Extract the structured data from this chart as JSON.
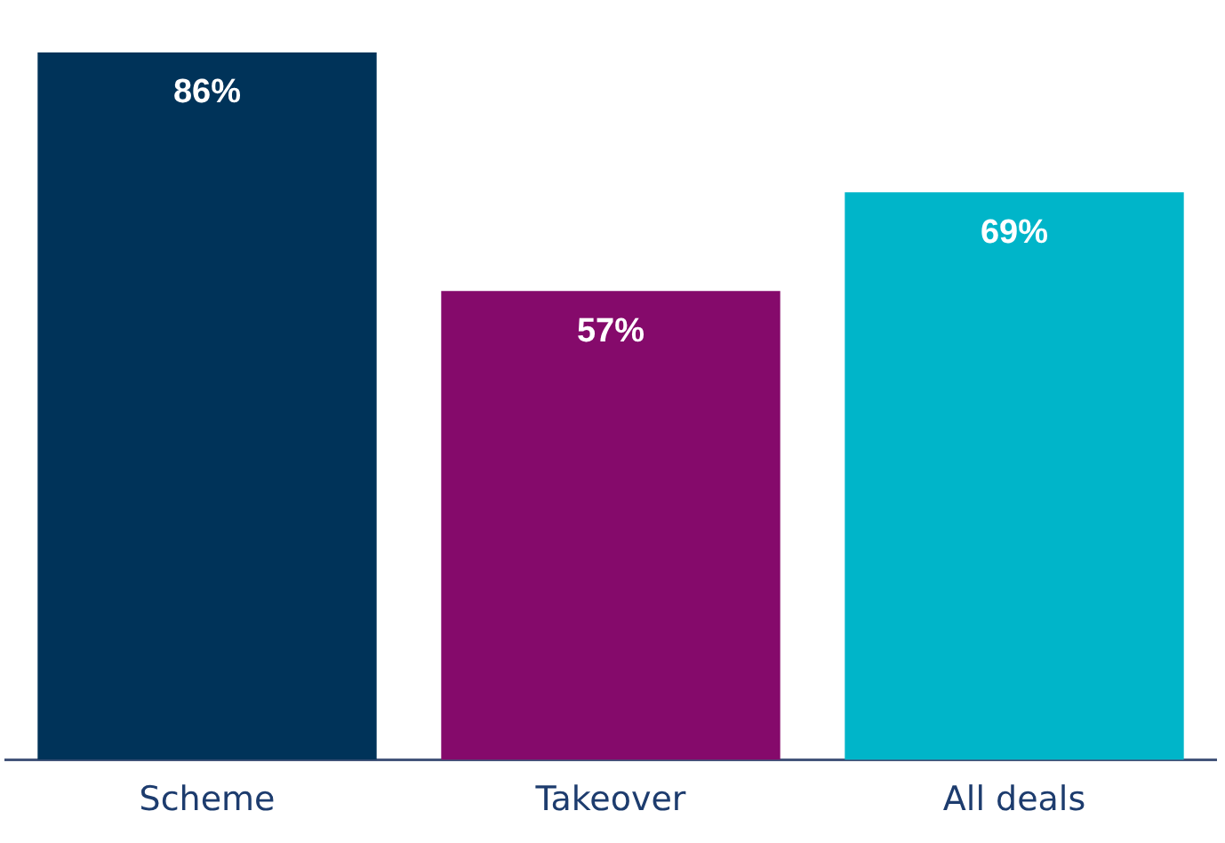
{
  "chart_data": {
    "type": "bar",
    "categories": [
      "Scheme",
      "Takeover",
      "All deals"
    ],
    "values": [
      86,
      57,
      69
    ],
    "colors": [
      "#003359",
      "#850a6b",
      "#00b5c9"
    ],
    "value_labels": [
      "86%",
      "57%",
      "69%"
    ],
    "grid": false,
    "legend": false
  }
}
